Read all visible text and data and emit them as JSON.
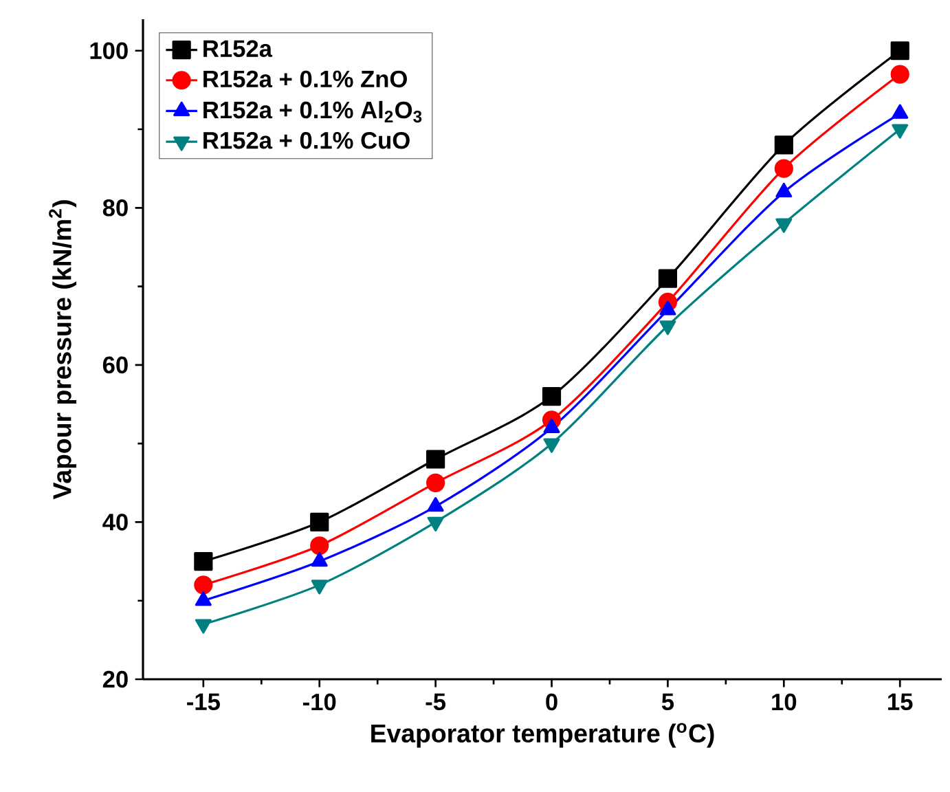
{
  "chart_data": {
    "type": "line",
    "xlabel": "Evaporator temperature ($^{o}$C)",
    "ylabel": "Vapour pressure (kN/m$^{2}$)",
    "x": [
      -15,
      -10,
      -5,
      0,
      5,
      10,
      15
    ],
    "series": [
      {
        "name": "R152a",
        "color": "#000000",
        "marker": "square",
        "values": [
          35,
          40,
          48,
          56,
          71,
          88,
          100
        ]
      },
      {
        "name": "R152a + 0.1% ZnO",
        "color": "#ff0000",
        "marker": "circle",
        "values": [
          32,
          37,
          45,
          53,
          68,
          85,
          97
        ]
      },
      {
        "name": "R152a + 0.1% Al$_{2}$O$_{3}$",
        "color": "#0000ff",
        "marker": "triangle",
        "values": [
          30,
          35,
          42,
          52,
          67,
          82,
          92
        ]
      },
      {
        "name": "R152a + 0.1% CuO",
        "color": "#008080",
        "marker": "triangle down",
        "values": [
          27,
          32,
          40,
          50,
          65,
          78,
          90
        ]
      }
    ],
    "xlim": [
      -17.6,
      16.8
    ],
    "ylim": [
      20,
      104
    ],
    "xticks": [
      -15,
      -10,
      -5,
      0,
      5,
      10,
      15
    ],
    "yticks": [
      20,
      40,
      60,
      80,
      100
    ],
    "legend": "top left",
    "grid": false,
    "line_style": "solid"
  }
}
